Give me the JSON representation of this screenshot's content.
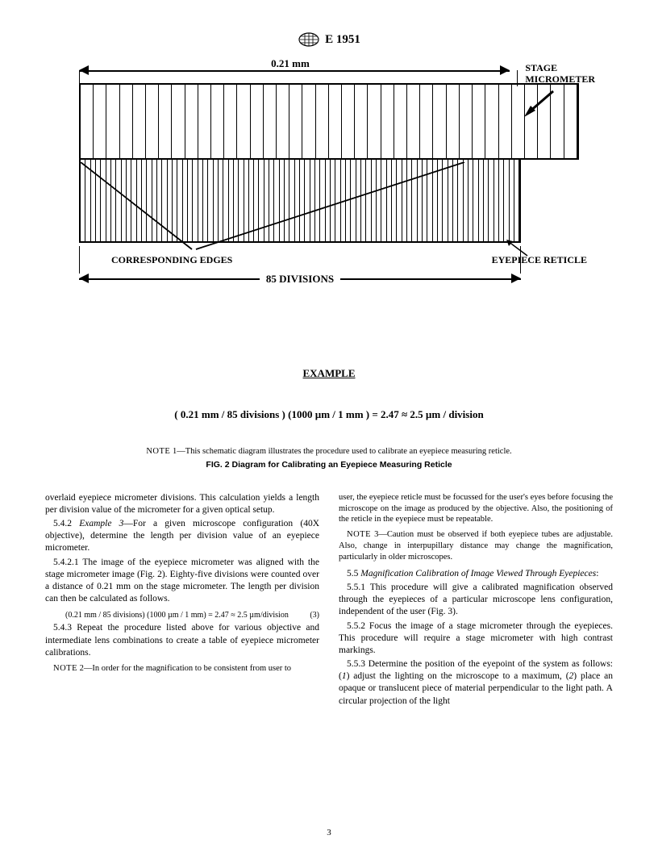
{
  "header": {
    "designation": "E 1951"
  },
  "diagram": {
    "top_dim_label": "0.21 mm",
    "stage_label_l1": "STAGE",
    "stage_label_l2": "MICROMETER",
    "corresponding_label": "CORRESPONDING EDGES",
    "eyepiece_label": "EYEPIECE RETICLE",
    "bot_dim_label": "85 DIVISIONS",
    "top_ticks": 38,
    "bot_ticks": 86
  },
  "example": {
    "title": "EXAMPLE",
    "formula": "( 0.21 mm  /  85 divisions ) (1000 µm  /  1 mm )  =  2.47   ≈  2.5  µm / division"
  },
  "note1_prefix": "NOTE",
  "note1": " 1—This schematic diagram illustrates the procedure used to calibrate an eyepiece measuring reticle.",
  "fig_caption": "FIG. 2 Diagram for Calibrating an Eyepiece Measuring Reticle",
  "left_col": {
    "p1": "overlaid eyepiece micrometer divisions. This calculation yields a length per division value of the micrometer for a given optical setup.",
    "p2a": "5.4.2 ",
    "p2i": "Example 3",
    "p2b": "—For a given microscope configuration (40X objective), determine the length per division value of an eyepiece micrometer.",
    "p3": "5.4.2.1 The image of the eyepiece micrometer was aligned with the stage micrometer image (Fig. 2). Eighty-five divisions were counted over a distance of 0.21 mm on the stage micrometer. The length per division can then be calculated as follows.",
    "eq": "(0.21 mm / 85 divisions) (1000 µm / 1 mm) = 2.47 ≈ 2.5 µm/division",
    "eq_num": "(3)",
    "p4": "5.4.3 Repeat the procedure listed above for various objective and intermediate lens combinations to create a table of eyepiece micrometer calibrations.",
    "n2_prefix": "NOTE",
    "n2": " 2—In order for the magnification to be consistent from user to"
  },
  "right_col": {
    "p1": "user, the eyepiece reticle must be focussed for the user's eyes before focusing the microscope on the image as produced by the objective. Also, the positioning of the reticle in the eyepiece must be repeatable.",
    "n3_prefix": "NOTE",
    "n3": " 3—Caution must be observed if both eyepiece tubes are adjustable. Also, change in interpupillary distance may change the magnification, particularly in older microscopes.",
    "p2a": "5.5 ",
    "p2i": "Magnification Calibration of Image Viewed Through Eyepieces",
    "p2b": ":",
    "p3": "5.5.1 This procedure will give a calibrated magnification observed through the eyepieces of a particular microscope lens configuration, independent of the user (Fig. 3).",
    "p4": "5.5.2 Focus the image of a stage micrometer through the eyepieces. This procedure will require a stage micrometer with high contrast markings.",
    "p5a": "5.5.3 Determine the position of the eyepoint of the system as follows: (",
    "p5i1": "1",
    "p5b": ") adjust the lighting on the microscope to a maximum, (",
    "p5i2": "2",
    "p5c": ") place an opaque or translucent piece of material perpendicular to the light path. A circular projection of the light"
  },
  "page_number": "3"
}
